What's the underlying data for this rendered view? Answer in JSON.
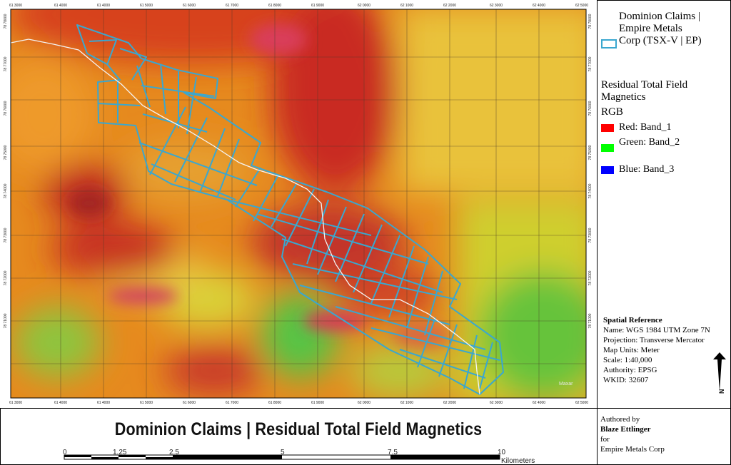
{
  "map": {
    "title": "Dominion Claims | Residual Total Field Magnetics",
    "basemap_credit": "Maxar",
    "x_ticks": [
      "61 3000",
      "61 4000",
      "61 4000",
      "61 5000",
      "61 6000",
      "61 7000",
      "61 8000",
      "61 9000",
      "62 0000",
      "62 1000",
      "62 2000",
      "62 3000",
      "62 4000",
      "62 5000"
    ],
    "y_ticks": [
      "78 78000",
      "78 77000",
      "78 76000",
      "78 75000",
      "78 74000",
      "78 73000",
      "78 72000",
      "78 71000"
    ]
  },
  "legend": {
    "layer_name": "Dominion Claims | Empire Metals Corp (TSX-V | EP)",
    "raster_name": "Residual Total Field Magnetics",
    "rgb_heading": "RGB",
    "bands": [
      {
        "label": "Red:   Band_1",
        "color": "#ff0000"
      },
      {
        "label": "Green: Band_2",
        "color": "#00ff00"
      },
      {
        "label": "Blue:  Band_3",
        "color": "#0000ff"
      }
    ],
    "claims_color": "#3aa7cf"
  },
  "spatial_reference": {
    "heading": "Spatial Reference",
    "name": "Name: WGS 1984 UTM Zone 7N",
    "projection": "Projection: Transverse Mercator",
    "units": "Map Units: Meter",
    "scale": "Scale: 1:40,000",
    "authority": "Authority: EPSG",
    "wkid": "WKID: 32607"
  },
  "scale_bar": {
    "labels": [
      "0",
      "1.25",
      "2.5",
      "5",
      "7.5",
      "10"
    ],
    "units": "Kilometers"
  },
  "author": {
    "line1": "Authored by",
    "name": "Blaze Ettlinger",
    "line3": "for",
    "org": "Empire Metals Corp"
  },
  "north_arrow": {
    "label": "N"
  }
}
